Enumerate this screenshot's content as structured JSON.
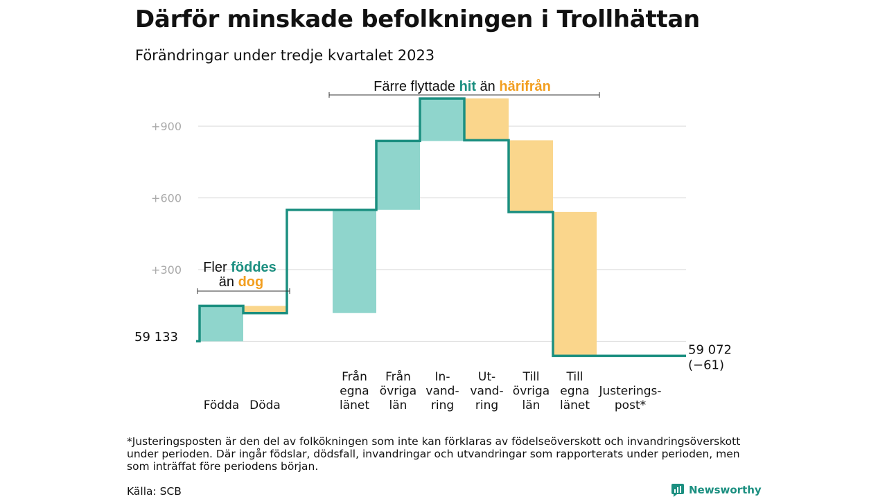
{
  "title": "Därför minskade befolkningen i Trollhättan",
  "subtitle": "Förändringar under tredje kvartalet 2023",
  "colors": {
    "in": "#1b8f80",
    "in_fill": "#8fd5cc",
    "out": "#f29e1f",
    "out_fill": "#fad68c",
    "grid": "#dddddd"
  },
  "annotations": {
    "births": {
      "line1_text": "Fler ",
      "line1_highlight": "föddes",
      "line2_text": "än ",
      "line2_highlight": "dog"
    },
    "moves": {
      "text1": "Färre flyttade ",
      "highlight1": "hit",
      "text2": " än ",
      "highlight2": "härifrån"
    }
  },
  "chart_data": {
    "type": "waterfall",
    "start_label": "59  133",
    "end_label": "59 072",
    "end_change_label": "(−61)",
    "y_ticks": [
      {
        "value": 300,
        "label": "+300"
      },
      {
        "value": 600,
        "label": "+600"
      },
      {
        "value": 900,
        "label": "+900"
      }
    ],
    "ylim": [
      -80,
      1080
    ],
    "steps": [
      {
        "lines": [
          "Födda"
        ],
        "value": 148,
        "kind": "in"
      },
      {
        "lines": [
          "Döda"
        ],
        "value": -30,
        "kind": "out"
      },
      {
        "lines": [
          "Från",
          "egna",
          "länet"
        ],
        "value": 432,
        "kind": "in"
      },
      {
        "lines": [
          "Från",
          "övriga",
          "län"
        ],
        "value": 288,
        "kind": "in"
      },
      {
        "lines": [
          "In-",
          "vand-",
          "ring"
        ],
        "value": 178,
        "kind": "in"
      },
      {
        "lines": [
          "Ut-",
          "vand-",
          "ring"
        ],
        "value": -175,
        "kind": "out"
      },
      {
        "lines": [
          "Till",
          "övriga",
          "län"
        ],
        "value": -300,
        "kind": "out"
      },
      {
        "lines": [
          "Till",
          "egna",
          "länet"
        ],
        "value": -602,
        "kind": "out"
      },
      {
        "lines": [
          "Justerings-",
          "post*"
        ],
        "value": 0,
        "kind": "adj"
      }
    ]
  },
  "footnote": "*Justeringsposten är den del av folkökningen som inte kan förklaras av födelseöverskott och invandringsöverskott under perioden. Där ingår födslar, dödsfall, invandringar och utvandringar som rapporterats under perioden, men som inträffat före periodens början.",
  "source": "Källa: SCB",
  "brand": "Newsworthy"
}
